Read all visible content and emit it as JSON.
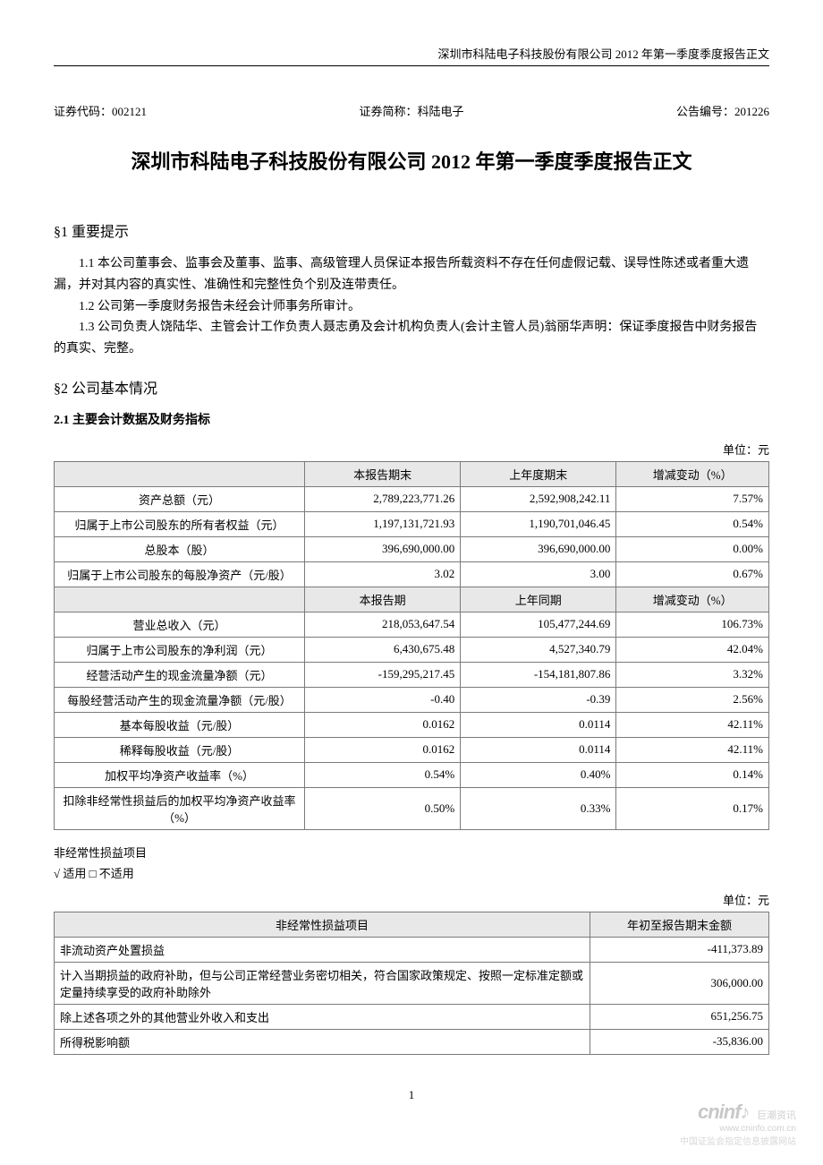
{
  "header_text": "深圳市科陆电子科技股份有限公司 2012 年第一季度季度报告正文",
  "meta": {
    "code_label": "证券代码：",
    "code_value": "002121",
    "short_label": "证券简称：",
    "short_value": "科陆电子",
    "notice_label": "公告编号：",
    "notice_value": "201226"
  },
  "title": "深圳市科陆电子科技股份有限公司 2012 年第一季度季度报告正文",
  "s1": {
    "heading": "§1  重要提示",
    "p1": "1.1 本公司董事会、监事会及董事、监事、高级管理人员保证本报告所载资料不存在任何虚假记载、误导性陈述或者重大遗漏，并对其内容的真实性、准确性和完整性负个别及连带责任。",
    "p2": "1.2 公司第一季度财务报告未经会计师事务所审计。",
    "p3": "1.3 公司负责人饶陆华、主管会计工作负责人聂志勇及会计机构负责人(会计主管人员)翁丽华声明：保证季度报告中财务报告的真实、完整。"
  },
  "s2": {
    "heading": "§2  公司基本情况",
    "sub": "2.1 主要会计数据及财务指标",
    "unit": "单位：元",
    "headers1": {
      "blank": "",
      "c1": "本报告期末",
      "c2": "上年度期末",
      "c3": "增减变动（%）"
    },
    "headers2": {
      "blank": "",
      "c1": "本报告期",
      "c2": "上年同期",
      "c3": "增减变动（%）"
    },
    "rows_top": [
      {
        "label": "资产总额（元）",
        "v1": "2,789,223,771.26",
        "v2": "2,592,908,242.11",
        "v3": "7.57%"
      },
      {
        "label": "归属于上市公司股东的所有者权益（元）",
        "v1": "1,197,131,721.93",
        "v2": "1,190,701,046.45",
        "v3": "0.54%"
      },
      {
        "label": "总股本（股）",
        "v1": "396,690,000.00",
        "v2": "396,690,000.00",
        "v3": "0.00%"
      },
      {
        "label": "归属于上市公司股东的每股净资产（元/股）",
        "v1": "3.02",
        "v2": "3.00",
        "v3": "0.67%"
      }
    ],
    "rows_bottom": [
      {
        "label": "营业总收入（元）",
        "v1": "218,053,647.54",
        "v2": "105,477,244.69",
        "v3": "106.73%"
      },
      {
        "label": "归属于上市公司股东的净利润（元）",
        "v1": "6,430,675.48",
        "v2": "4,527,340.79",
        "v3": "42.04%"
      },
      {
        "label": "经营活动产生的现金流量净额（元）",
        "v1": "-159,295,217.45",
        "v2": "-154,181,807.86",
        "v3": "3.32%"
      },
      {
        "label": "每股经营活动产生的现金流量净额（元/股）",
        "v1": "-0.40",
        "v2": "-0.39",
        "v3": "2.56%"
      },
      {
        "label": "基本每股收益（元/股）",
        "v1": "0.0162",
        "v2": "0.0114",
        "v3": "42.11%"
      },
      {
        "label": "稀释每股收益（元/股）",
        "v1": "0.0162",
        "v2": "0.0114",
        "v3": "42.11%"
      },
      {
        "label": "加权平均净资产收益率（%）",
        "v1": "0.54%",
        "v2": "0.40%",
        "v3": "0.14%"
      },
      {
        "label": "扣除非经常性损益后的加权平均净资产收益率（%）",
        "v1": "0.50%",
        "v2": "0.33%",
        "v3": "0.17%"
      }
    ]
  },
  "nonrecurring": {
    "title": "非经常性损益项目",
    "applies": "√ 适用 □ 不适用",
    "unit": "单位：元",
    "header_item": "非经常性损益项目",
    "header_amount": "年初至报告期末金额",
    "rows": [
      {
        "label": "非流动资产处置损益",
        "amount": "-411,373.89"
      },
      {
        "label": "计入当期损益的政府补助，但与公司正常经营业务密切相关，符合国家政策规定、按照一定标准定额或定量持续享受的政府补助除外",
        "amount": "306,000.00"
      },
      {
        "label": "除上述各项之外的其他营业外收入和支出",
        "amount": "651,256.75"
      },
      {
        "label": "所得税影响额",
        "amount": "-35,836.00"
      }
    ]
  },
  "page_number": "1",
  "watermark": {
    "logo_main": "cninf",
    "logo_badge": "巨潮资讯",
    "url": "www.cninfo.com.cn",
    "cn_text": "中国证监会指定信息披露网站"
  }
}
